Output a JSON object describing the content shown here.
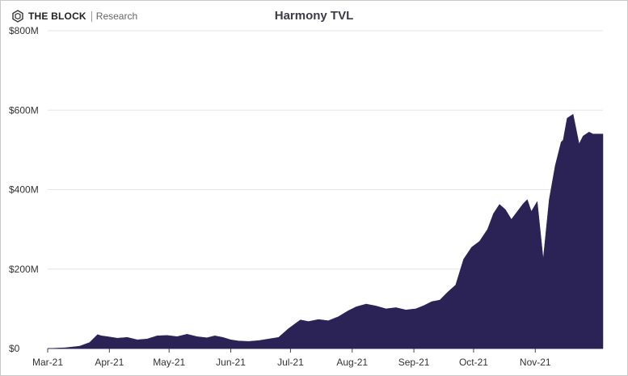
{
  "brand": {
    "name": "THE BLOCK",
    "sub": "Research"
  },
  "colors": {
    "area": "#2b2356",
    "grid": "#e6e6e6",
    "axis": "#444444"
  },
  "chart_data": {
    "type": "area",
    "title": "Harmony TVL",
    "xlabel": "",
    "ylabel": "",
    "ylim": [
      0,
      800
    ],
    "grid": true,
    "legend": "none",
    "y_ticks": [
      {
        "value": 0,
        "label": "$0"
      },
      {
        "value": 200,
        "label": "$200M"
      },
      {
        "value": 400,
        "label": "$400M"
      },
      {
        "value": 600,
        "label": "$600M"
      },
      {
        "value": 800,
        "label": "$800M"
      }
    ],
    "x_ticks": [
      {
        "date": "2021-03-01",
        "label": "Mar-21"
      },
      {
        "date": "2021-04-01",
        "label": "Apr-21"
      },
      {
        "date": "2021-05-01",
        "label": "May-21"
      },
      {
        "date": "2021-06-01",
        "label": "Jun-21"
      },
      {
        "date": "2021-07-01",
        "label": "Jul-21"
      },
      {
        "date": "2021-08-01",
        "label": "Aug-21"
      },
      {
        "date": "2021-09-01",
        "label": "Sep-21"
      },
      {
        "date": "2021-10-01",
        "label": "Oct-21"
      },
      {
        "date": "2021-11-01",
        "label": "Nov-21"
      }
    ],
    "series": [
      {
        "name": "",
        "x": [
          "2021-03-01",
          "2021-03-10",
          "2021-03-17",
          "2021-03-22",
          "2021-03-26",
          "2021-03-28",
          "2021-03-31",
          "2021-04-05",
          "2021-04-10",
          "2021-04-15",
          "2021-04-20",
          "2021-04-25",
          "2021-04-30",
          "2021-05-05",
          "2021-05-10",
          "2021-05-15",
          "2021-05-20",
          "2021-05-24",
          "2021-05-28",
          "2021-06-01",
          "2021-06-05",
          "2021-06-10",
          "2021-06-15",
          "2021-06-20",
          "2021-06-25",
          "2021-06-30",
          "2021-07-04",
          "2021-07-06",
          "2021-07-10",
          "2021-07-15",
          "2021-07-20",
          "2021-07-25",
          "2021-07-30",
          "2021-08-03",
          "2021-08-08",
          "2021-08-13",
          "2021-08-18",
          "2021-08-23",
          "2021-08-28",
          "2021-09-02",
          "2021-09-06",
          "2021-09-10",
          "2021-09-14",
          "2021-09-18",
          "2021-09-22",
          "2021-09-26",
          "2021-09-30",
          "2021-10-04",
          "2021-10-08",
          "2021-10-11",
          "2021-10-14",
          "2021-10-17",
          "2021-10-20",
          "2021-10-23",
          "2021-10-26",
          "2021-10-28",
          "2021-10-30",
          "2021-11-02",
          "2021-11-05",
          "2021-11-08",
          "2021-11-11",
          "2021-11-14",
          "2021-11-15",
          "2021-11-17",
          "2021-11-20",
          "2021-11-23",
          "2021-11-25",
          "2021-11-28",
          "2021-11-30",
          "2021-12-03",
          "2021-12-05"
        ],
        "values": [
          0,
          2,
          6,
          15,
          35,
          32,
          30,
          26,
          28,
          22,
          24,
          32,
          33,
          30,
          36,
          30,
          27,
          32,
          28,
          22,
          19,
          18,
          20,
          24,
          28,
          50,
          65,
          72,
          68,
          73,
          70,
          80,
          95,
          105,
          112,
          107,
          100,
          103,
          97,
          100,
          108,
          118,
          122,
          142,
          160,
          225,
          255,
          270,
          300,
          340,
          363,
          350,
          325,
          345,
          365,
          375,
          345,
          370,
          225,
          375,
          460,
          520,
          525,
          580,
          590,
          515,
          535,
          545,
          540,
          540,
          540
        ]
      }
    ]
  }
}
